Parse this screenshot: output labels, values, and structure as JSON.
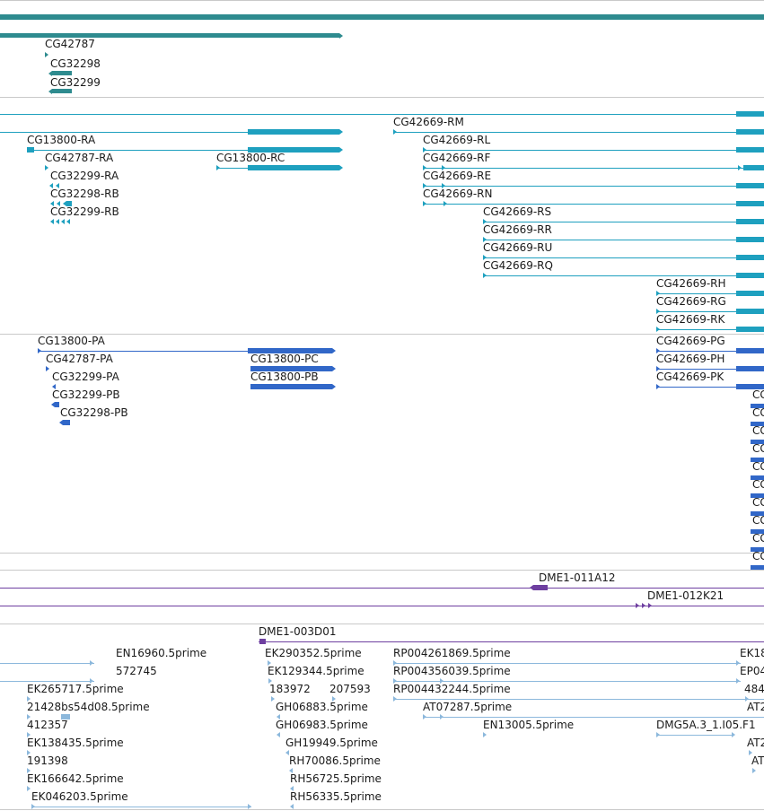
{
  "colors": {
    "gene": "#2e8b8f",
    "mrna": "#1ea0bf",
    "protein": "#3167c8",
    "clone": "#6e3fa0",
    "est": "#8cb8dc",
    "separator": "#c9c9c9"
  },
  "tracks": {
    "genes": [
      "CG42787",
      "CG32298",
      "CG32299"
    ],
    "mrna": [
      "CG42669-RM",
      "CG13800-RA",
      "CG42669-RL",
      "CG42787-RA",
      "CG13800-RC",
      "CG42669-RF",
      "CG32299-RA",
      "CG42669-RE",
      "CG32298-RB",
      "CG42669-RN",
      "CG32299-RB",
      "CG42669-RS",
      "CG42669-RR",
      "CG42669-RU",
      "CG42669-RQ",
      "CG42669-RH",
      "CG42669-RG",
      "CG42669-RK"
    ],
    "proteins": [
      "CG13800-PA",
      "CG42669-PG",
      "CG42787-PA",
      "CG13800-PC",
      "CG42669-PH",
      "CG32299-PA",
      "CG13800-PB",
      "CG42669-PK",
      "CG32299-PB",
      "CG32298-PB",
      "CG",
      "CG",
      "CG",
      "CG",
      "CG",
      "CG",
      "CG",
      "CG",
      "CG",
      "CG"
    ],
    "clones": [
      "DME1-011A12",
      "DME1-012K21",
      "DME1-003D01"
    ],
    "ests": [
      "EN16960.5prime",
      "EK290352.5prime",
      "RP004261869.5prime",
      "EK18",
      "572745",
      "EK129344.5prime",
      "RP004356039.5prime",
      "EP04",
      "EK265717.5prime",
      "183972",
      "207593",
      "RP004432244.5prime",
      "484",
      "21428bs54d08.5prime",
      "GH06883.5prime",
      "AT07287.5prime",
      "AT2",
      "412357",
      "GH06983.5prime",
      "EN13005.5prime",
      "DMG5A.3_1.I05.F1",
      "EK138435.5prime",
      "GH19949.5prime",
      "AT2",
      "191398",
      "RH70086.5prime",
      "AT",
      "EK166642.5prime",
      "RH56725.5prime",
      "EK046203.5prime",
      "RH56335.5prime"
    ]
  }
}
